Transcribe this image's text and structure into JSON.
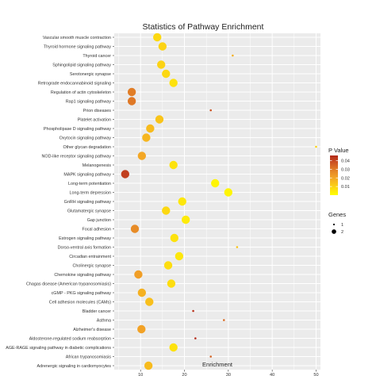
{
  "chart_data": {
    "type": "scatter",
    "title": "Statistics of Pathway Enrichment",
    "xlabel": "Enrichment",
    "ylabel": "",
    "xlim": [
      4,
      51
    ],
    "x_ticks": [
      10,
      20,
      30,
      40,
      50
    ],
    "categories": [
      "Vascular smooth muscle contraction",
      "Thyroid hormone signaling pathway",
      "Thyroid cancer",
      "Sphingolipid signaling pathway",
      "Serotonergic synapse",
      "Retrograde endocannabinoid signaling",
      "Regulation of actin cytoskeleton",
      "Rap1 signaling pathway",
      "Prion diseases",
      "Platelet activation",
      "Phospholipase D signaling pathway",
      "Oxytocin signaling pathway",
      "Other glycan degradation",
      "NOD-like receptor signaling pathway",
      "Melanogenesis",
      "MAPK signaling pathway",
      "Long-term potentiation",
      "Long-term depression",
      "GnRH signaling pathway",
      "Glutamatergic synapse",
      "Gap junction",
      "Focal adhesion",
      "Estrogen signaling pathway",
      "Dorso-ventral axis formation",
      "Circadian entrainment",
      "Cholinergic synapse",
      "Chemokine signaling pathway",
      "Chagas disease (American trypanosomiasis)",
      "cGMP - PKG signaling pathway",
      "Cell adhesion molecules (CAMs)",
      "Bladder cancer",
      "Asthma",
      "Alzheimer's disease",
      "Aldosterone-regulated sodium reabsorption",
      "AGE-RAGE signaling pathway in diabetic complications",
      "African trypanosomiasis",
      "Adrenergic signaling in cardiomyocytes"
    ],
    "points": [
      {
        "pathway": "Vascular smooth muscle contraction",
        "enrichment": 13.8,
        "pvalue": 0.008,
        "genes": 2
      },
      {
        "pathway": "Thyroid hormone signaling pathway",
        "enrichment": 15.0,
        "pvalue": 0.009,
        "genes": 2
      },
      {
        "pathway": "Thyroid cancer",
        "enrichment": 31.0,
        "pvalue": 0.016,
        "genes": 1
      },
      {
        "pathway": "Sphingolipid signaling pathway",
        "enrichment": 14.7,
        "pvalue": 0.009,
        "genes": 2
      },
      {
        "pathway": "Serotonergic synapse",
        "enrichment": 15.8,
        "pvalue": 0.008,
        "genes": 2
      },
      {
        "pathway": "Retrograde endocannabinoid signaling",
        "enrichment": 17.5,
        "pvalue": 0.006,
        "genes": 2
      },
      {
        "pathway": "Regulation of actin cytoskeleton",
        "enrichment": 8.0,
        "pvalue": 0.027,
        "genes": 2
      },
      {
        "pathway": "Rap1 signaling pathway",
        "enrichment": 8.0,
        "pvalue": 0.028,
        "genes": 2
      },
      {
        "pathway": "Prion diseases",
        "enrichment": 26.0,
        "pvalue": 0.035,
        "genes": 1
      },
      {
        "pathway": "Platelet activation",
        "enrichment": 14.3,
        "pvalue": 0.012,
        "genes": 2
      },
      {
        "pathway": "Phospholipase D signaling pathway",
        "enrichment": 12.2,
        "pvalue": 0.014,
        "genes": 2
      },
      {
        "pathway": "Oxytocin signaling pathway",
        "enrichment": 11.3,
        "pvalue": 0.015,
        "genes": 2
      },
      {
        "pathway": "Other glycan degradation",
        "enrichment": 50.0,
        "pvalue": 0.009,
        "genes": 1
      },
      {
        "pathway": "NOD-like receptor signaling pathway",
        "enrichment": 10.3,
        "pvalue": 0.018,
        "genes": 2
      },
      {
        "pathway": "Melanogenesis",
        "enrichment": 17.5,
        "pvalue": 0.006,
        "genes": 2
      },
      {
        "pathway": "MAPK signaling pathway",
        "enrichment": 6.5,
        "pvalue": 0.04,
        "genes": 2
      },
      {
        "pathway": "Long-term potentiation",
        "enrichment": 27.0,
        "pvalue": 0.002,
        "genes": 2
      },
      {
        "pathway": "Long-term depression",
        "enrichment": 30.0,
        "pvalue": 0.002,
        "genes": 2
      },
      {
        "pathway": "GnRH signaling pathway",
        "enrichment": 19.5,
        "pvalue": 0.005,
        "genes": 2
      },
      {
        "pathway": "Glutamatergic synapse",
        "enrichment": 15.8,
        "pvalue": 0.008,
        "genes": 2
      },
      {
        "pathway": "Gap junction",
        "enrichment": 20.3,
        "pvalue": 0.004,
        "genes": 2
      },
      {
        "pathway": "Focal adhesion",
        "enrichment": 8.7,
        "pvalue": 0.024,
        "genes": 2
      },
      {
        "pathway": "Estrogen signaling pathway",
        "enrichment": 17.7,
        "pvalue": 0.006,
        "genes": 2
      },
      {
        "pathway": "Dorso-ventral axis formation",
        "enrichment": 32.0,
        "pvalue": 0.012,
        "genes": 1
      },
      {
        "pathway": "Circadian entrainment",
        "enrichment": 18.8,
        "pvalue": 0.005,
        "genes": 2
      },
      {
        "pathway": "Cholinergic synapse",
        "enrichment": 16.3,
        "pvalue": 0.007,
        "genes": 2
      },
      {
        "pathway": "Chemokine signaling pathway",
        "enrichment": 9.5,
        "pvalue": 0.02,
        "genes": 2
      },
      {
        "pathway": "Chagas disease (American trypanosomiasis)",
        "enrichment": 17.0,
        "pvalue": 0.007,
        "genes": 2
      },
      {
        "pathway": "cGMP - PKG signaling pathway",
        "enrichment": 10.3,
        "pvalue": 0.016,
        "genes": 2
      },
      {
        "pathway": "Cell adhesion molecules (CAMs)",
        "enrichment": 12.0,
        "pvalue": 0.013,
        "genes": 2
      },
      {
        "pathway": "Bladder cancer",
        "enrichment": 22.0,
        "pvalue": 0.043,
        "genes": 1
      },
      {
        "pathway": "Asthma",
        "enrichment": 29.0,
        "pvalue": 0.03,
        "genes": 1
      },
      {
        "pathway": "Alzheimer's disease",
        "enrichment": 10.2,
        "pvalue": 0.019,
        "genes": 2
      },
      {
        "pathway": "Aldosterone-regulated sodium reabsorption",
        "enrichment": 22.5,
        "pvalue": 0.046,
        "genes": 1
      },
      {
        "pathway": "AGE-RAGE signaling pathway in diabetic complications",
        "enrichment": 17.5,
        "pvalue": 0.006,
        "genes": 2
      },
      {
        "pathway": "African trypanosomiasis",
        "enrichment": 26.0,
        "pvalue": 0.032,
        "genes": 1
      },
      {
        "pathway": "Adrenergic signaling in cardiomyocytes",
        "enrichment": 11.8,
        "pvalue": 0.014,
        "genes": 2
      }
    ],
    "color_legend": {
      "title": "P Value",
      "ticks": [
        "0.04",
        "0.03",
        "0.02",
        "0.01"
      ],
      "tick_values": [
        0.04,
        0.03,
        0.02,
        0.01
      ],
      "range": [
        0.0,
        0.046
      ],
      "colors": [
        "#ffff00",
        "#fcd214",
        "#f3a526",
        "#e07a26",
        "#c84a22",
        "#b32a1a"
      ]
    },
    "size_legend": {
      "title": "Genes",
      "items": [
        {
          "label": "1",
          "value": 1
        },
        {
          "label": "2",
          "value": 2
        }
      ]
    },
    "grid": true,
    "legend_position": "right",
    "panel_color": "#ebebeb",
    "grid_color": "#ffffff"
  }
}
